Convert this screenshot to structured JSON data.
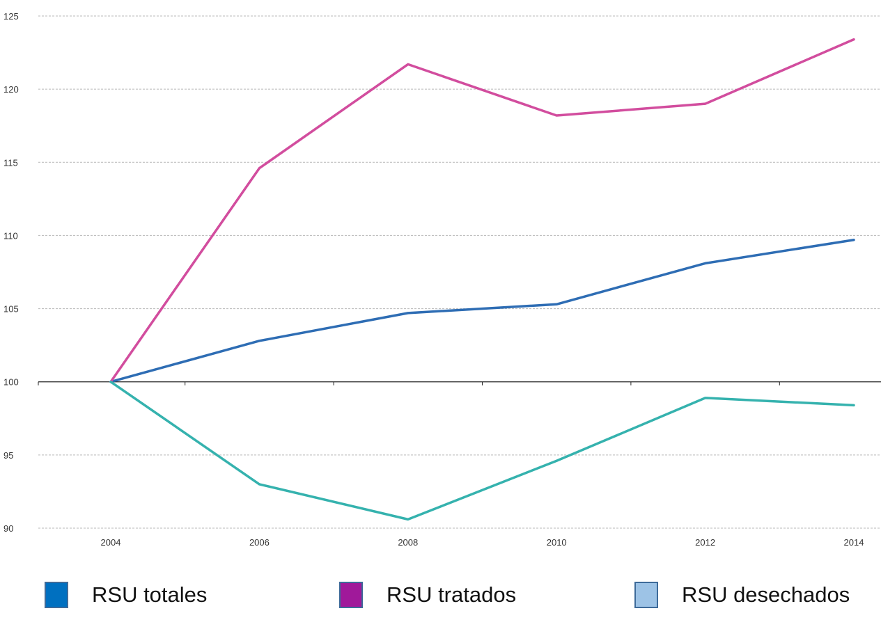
{
  "chart_data": {
    "type": "line",
    "title": "",
    "xlabel": "",
    "ylabel": "",
    "categories": [
      "2004",
      "2006",
      "2008",
      "2010",
      "2012",
      "2014"
    ],
    "ylim": [
      90,
      125
    ],
    "yticks": [
      "90",
      "95",
      "100",
      "105",
      "110",
      "115",
      "120",
      "125"
    ],
    "baseline": 100,
    "grid": true,
    "legend_position": "bottom",
    "series": [
      {
        "name": "RSU totales",
        "color": "#2e6db4",
        "values": [
          100,
          102.8,
          104.7,
          105.3,
          108.1,
          109.7
        ]
      },
      {
        "name": "RSU tratados",
        "color": "#d24d9e",
        "values": [
          100,
          114.6,
          121.7,
          118.2,
          119.0,
          123.4
        ]
      },
      {
        "name": "RSU desechados",
        "color": "#35b2ae",
        "values": [
          100,
          93.0,
          90.6,
          94.6,
          98.9,
          98.4
        ]
      }
    ]
  },
  "legend": [
    {
      "label": "RSU totales",
      "swatch_color": "#0070c0"
    },
    {
      "label": "RSU tratados",
      "swatch_color": "#a0199a"
    },
    {
      "label": "RSU desechados",
      "swatch_color": "#9dc3e6"
    }
  ]
}
